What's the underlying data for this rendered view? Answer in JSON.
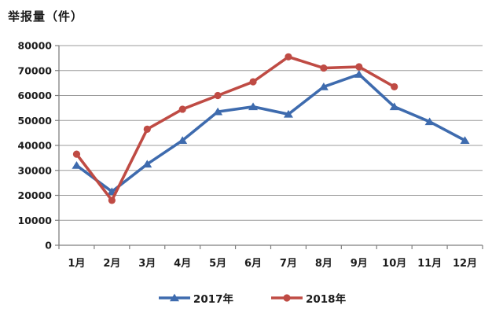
{
  "title": "举报量（件）",
  "chart_data": {
    "type": "line",
    "title": "举报量（件）",
    "categories": [
      "1月",
      "2月",
      "3月",
      "4月",
      "5月",
      "6月",
      "7月",
      "8月",
      "9月",
      "10月",
      "11月",
      "12月"
    ],
    "series": [
      {
        "name": "2017年",
        "color": "#3E6BAE",
        "marker": "triangle",
        "values": [
          32000,
          21500,
          32500,
          42000,
          53500,
          55500,
          52500,
          63500,
          68500,
          55500,
          49500,
          42000
        ]
      },
      {
        "name": "2018年",
        "color": "#BF4B44",
        "marker": "circle",
        "values": [
          36500,
          18000,
          46500,
          54500,
          60000,
          65500,
          75500,
          71000,
          71500,
          63500,
          null,
          null
        ]
      }
    ],
    "ylim": [
      0,
      80000
    ],
    "ytick_step": 10000,
    "ytick_labels": [
      "0",
      "10000",
      "20000",
      "30000",
      "40000",
      "50000",
      "60000",
      "70000",
      "80000"
    ],
    "grid": "horizontal",
    "legend_position": "bottom",
    "grid_color": "#9B9B9B",
    "axis_color": "#7F7F7F",
    "text_color": "#1C1C1C",
    "background_color": "#FFFFFF"
  }
}
